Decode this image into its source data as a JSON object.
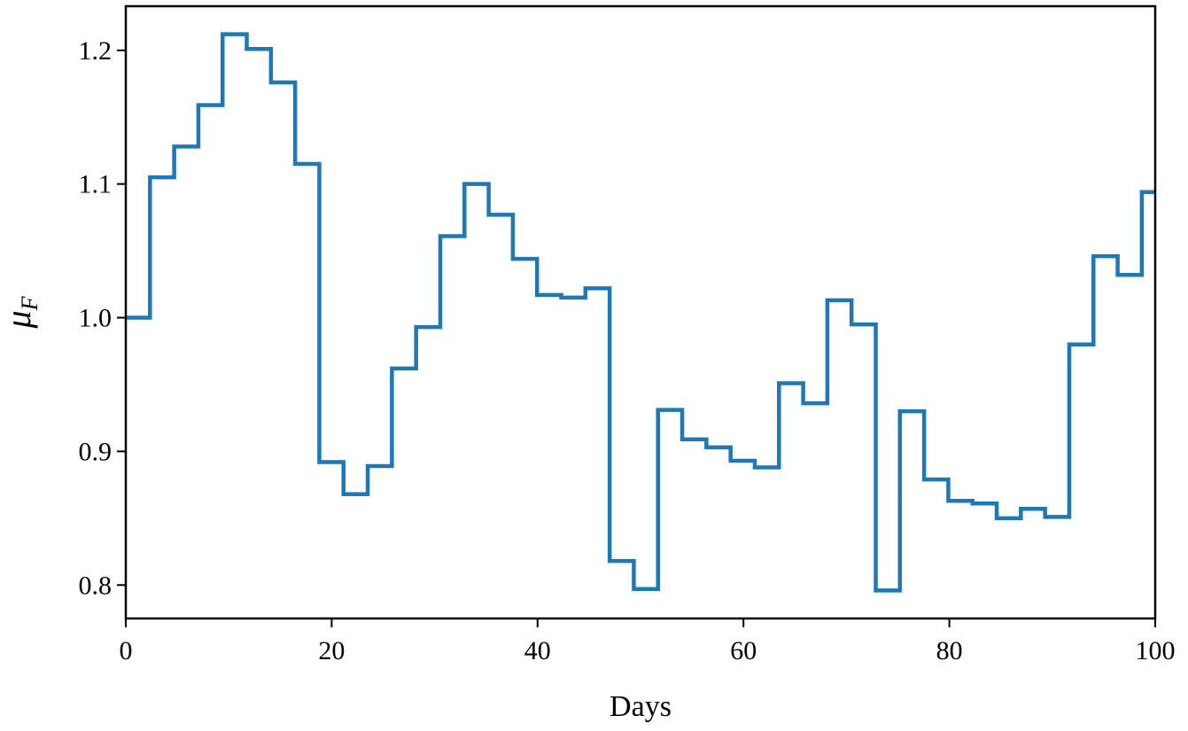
{
  "chart_data": {
    "type": "line",
    "drawstyle": "steps-post",
    "title": "",
    "xlabel": "Days",
    "ylabel": "μ",
    "ylabel_subscript": "F",
    "xlim": [
      0,
      100
    ],
    "ylim": [
      0.775,
      1.233
    ],
    "grid": false,
    "legend": "none",
    "xticks": [
      0,
      20,
      40,
      60,
      80,
      100
    ],
    "xtick_labels": [
      "0",
      "20",
      "40",
      "60",
      "80",
      "100"
    ],
    "yticks": [
      0.8,
      0.9,
      1.0,
      1.1,
      1.2
    ],
    "ytick_labels": [
      "0.8",
      "0.9",
      "1.0",
      "1.1",
      "1.2"
    ],
    "color": "#1f77b4",
    "series": [
      {
        "name": "mu_F",
        "x": [
          0,
          2.35,
          4.7,
          7.05,
          9.4,
          11.75,
          14.1,
          16.45,
          18.8,
          21.15,
          23.5,
          25.85,
          28.2,
          30.55,
          32.9,
          35.25,
          37.6,
          39.95,
          42.3,
          44.65,
          47.0,
          49.35,
          51.7,
          54.05,
          56.4,
          58.75,
          61.1,
          63.45,
          65.8,
          68.15,
          70.5,
          72.85,
          75.2,
          77.55,
          79.9,
          82.25,
          84.6,
          86.95,
          89.3,
          91.65,
          94.0,
          96.35,
          98.7,
          100
        ],
        "y": [
          1.0,
          1.105,
          1.128,
          1.159,
          1.212,
          1.201,
          1.176,
          1.115,
          0.892,
          0.868,
          0.889,
          0.962,
          0.993,
          1.061,
          1.1,
          1.077,
          1.044,
          1.017,
          1.015,
          1.022,
          0.818,
          0.797,
          0.931,
          0.909,
          0.903,
          0.893,
          0.888,
          0.951,
          0.936,
          1.013,
          0.995,
          0.796,
          0.93,
          0.879,
          0.863,
          0.861,
          0.85,
          0.857,
          0.851,
          0.98,
          1.046,
          1.032,
          1.094,
          1.094
        ]
      }
    ]
  }
}
